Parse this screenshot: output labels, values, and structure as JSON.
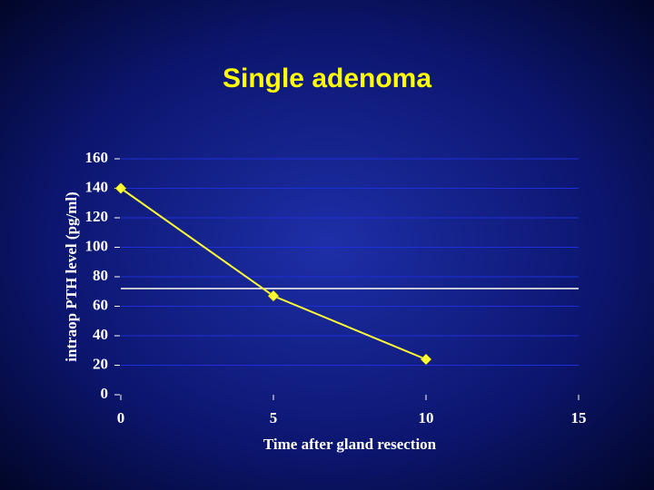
{
  "chart_data": {
    "type": "line",
    "title": "Single adenoma",
    "x_label": "Time after gland resection",
    "y_label": "intraop PTH level (pg/ml)",
    "x": [
      0,
      5,
      10
    ],
    "series": [
      {
        "color": "#ffff33",
        "values": [
          140,
          67,
          24
        ]
      }
    ],
    "reference_line": {
      "value": 72,
      "color": "#fffff0"
    },
    "xlim": [
      0,
      15
    ],
    "xticks": [
      0,
      5,
      10,
      15
    ],
    "ylim": [
      0,
      160
    ],
    "yticks": [
      0,
      20,
      40,
      60,
      80,
      100,
      120,
      140,
      160
    ],
    "grid": true,
    "grid_color": "#1f2fd8"
  }
}
